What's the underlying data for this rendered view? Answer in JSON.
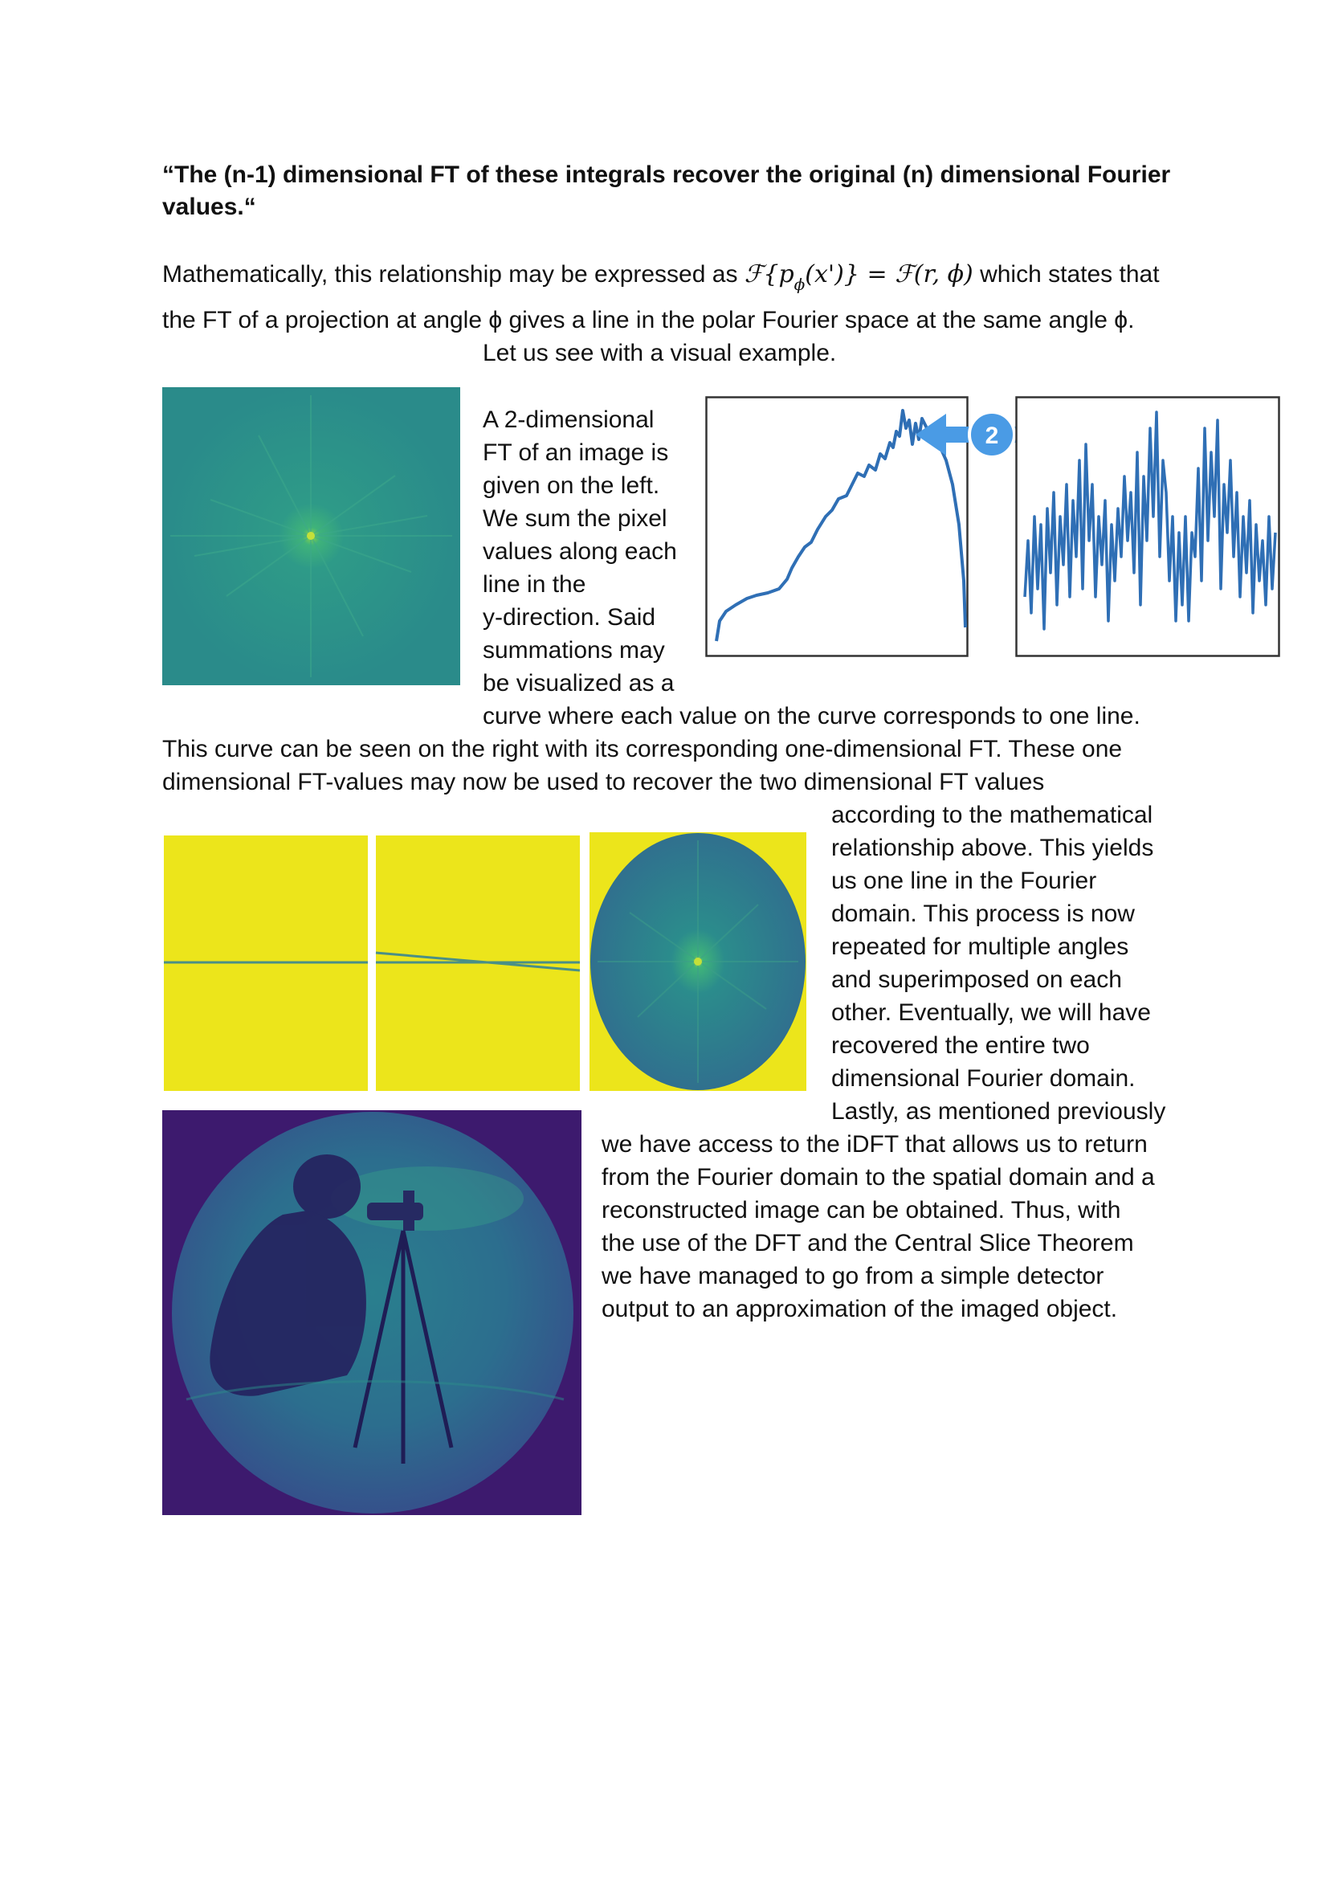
{
  "heading": "“The (n-1) dimensional FT of these integrals recover the original (n) dimensional Fourier values.“",
  "intro": {
    "line1_prefix": "Mathematically, this relationship may be expressed as ",
    "eq_lhs_open": "ℱ{p",
    "eq_lhs_sub": "ϕ",
    "eq_lhs_close": "(x')}",
    "eq_equals": " = ",
    "eq_rhs": "ℱ(r, ϕ)",
    "line1_suffix": " which states that",
    "line2": "the FT of a projection at angle ϕ gives a line in the polar Fourier space at the same angle ϕ.",
    "line3": "Let us see with a visual example."
  },
  "para1_lines": [
    "A 2-dimensional",
    "FT of an image is",
    "given on the left.",
    "We sum the pixel",
    "values along each",
    "line in the",
    "y-direction. Said",
    "summations may",
    "be visualized as a"
  ],
  "para1_cont_lines": [
    "curve where each value on the curve corresponds to one line.",
    "This curve can be seen on the right with its corresponding one-dimensional FT. These one",
    "dimensional FT-values may now be used to recover the two dimensional FT values"
  ],
  "para2_lines": [
    "according to the mathematical",
    "relationship above. This yields",
    "us one line in the Fourier",
    "domain. This process is now",
    "repeated for multiple angles",
    "and superimposed on each",
    "other. Eventually, we will have",
    "recovered the entire two",
    "dimensional Fourier domain.",
    "Lastly, as mentioned previously"
  ],
  "para3_lines": [
    "we have access to the iDFT that allows us to return",
    "from the Fourier domain to the spatial domain and a",
    "reconstructed image can be obtained.  Thus, with",
    "the use of the DFT and the Central Slice Theorem",
    "we have managed to go from a simple detector",
    "output to an approximation of the imaged object."
  ],
  "figure_labels": {
    "arrow_step": "2"
  },
  "colors": {
    "viridis_teal": "#2a8b8a",
    "viridis_yellow": "#ece51b",
    "viridis_purple": "#3d1a6e",
    "plot_blue": "#2f6fb5",
    "arrow_blue": "#4a9be5"
  }
}
